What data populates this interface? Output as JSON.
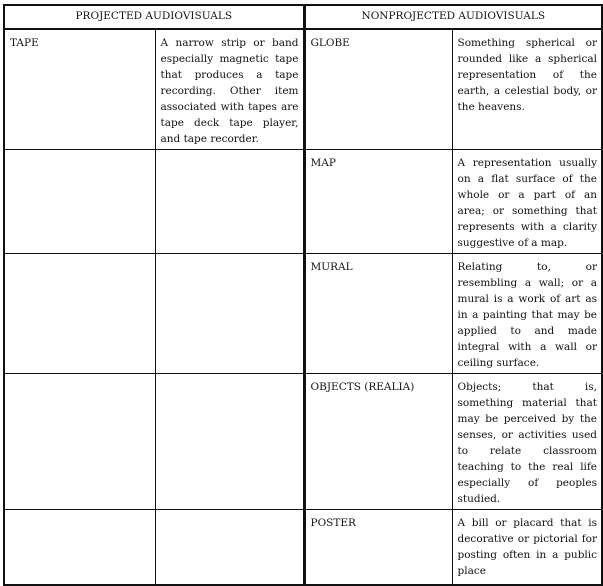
{
  "headers": {
    "projected": "PROJECTED AUDIOVISUALS",
    "nonprojected": "NONPROJECTED  AUDIOVISUALS"
  },
  "rows": [
    {
      "projected_term": "TAPE",
      "projected_desc": "A narrow strip or band especially magnetic tape that produces a tape recording.  Other item associated with tapes are tape deck tape player, and tape recorder.",
      "nonprojected_term": "GLOBE",
      "nonprojected_desc": "Something spherical or rounded like a spherical representation of the earth, a celestial body, or the heavens."
    },
    {
      "projected_term": "",
      "projected_desc": "",
      "nonprojected_term": "MAP",
      "nonprojected_desc": "A representation usually on a flat surface of the whole or a part of an area; or something that represents with a clarity suggestive of a map."
    },
    {
      "projected_term": "",
      "projected_desc": "",
      "nonprojected_term": "MURAL",
      "nonprojected_desc": "Relating to, or resembling a wall; or a mural is a work of art as in a painting that may be applied to and made integral with a wall or ceiling surface."
    },
    {
      "projected_term": "",
      "projected_desc": "",
      "nonprojected_term": "OBJECTS  (REALIA)",
      "nonprojected_desc": "Objects; that is, something material that may be perceived by the senses, or activities used to relate classroom teaching to the real life especially of peoples studied."
    },
    {
      "projected_term": "",
      "projected_desc": "",
      "nonprojected_term": "POSTER",
      "nonprojected_desc": "A bill or placard that is decorative or pictorial for posting often in a public place"
    }
  ]
}
